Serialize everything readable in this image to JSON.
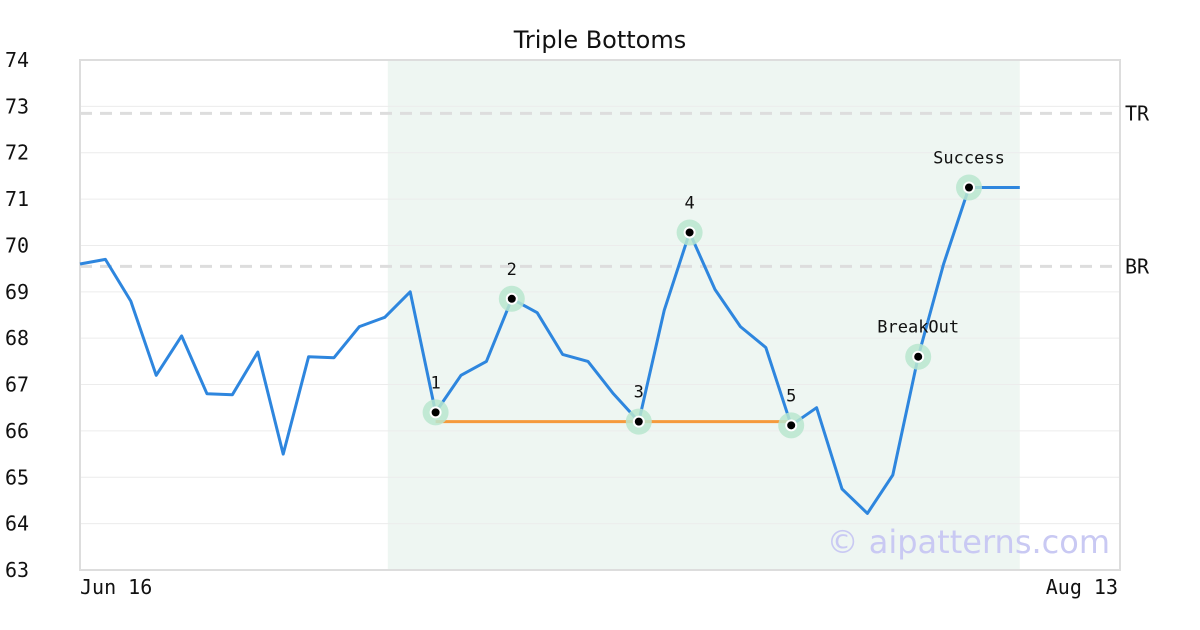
{
  "chart_data": {
    "type": "line",
    "title": "Triple Bottoms",
    "xlabel": "",
    "ylabel": "",
    "x_tick_labels": [
      "Jun 16",
      "Aug 13"
    ],
    "ylim": [
      63,
      74
    ],
    "yticks": [
      63,
      64,
      65,
      66,
      67,
      68,
      69,
      70,
      71,
      72,
      73,
      74
    ],
    "grid": "horizontal",
    "series": [
      {
        "color": "#2e86de",
        "values": [
          69.6,
          69.7,
          68.8,
          67.2,
          68.05,
          66.8,
          66.78,
          67.7,
          65.5,
          67.6,
          67.58,
          68.25,
          68.45,
          69.0,
          66.4,
          67.2,
          67.5,
          68.85,
          68.55,
          67.65,
          67.5,
          66.8,
          66.2,
          68.6,
          70.28,
          69.05,
          68.25,
          67.8,
          66.12,
          66.5,
          64.75,
          64.22,
          65.05,
          67.6,
          69.6,
          71.25,
          71.25,
          71.25
        ]
      }
    ],
    "shaded_region": {
      "from_index": 12,
      "to_index": 37,
      "color": "#eef6f2"
    },
    "levels": [
      {
        "label": "TR",
        "value": 72.85,
        "color": "#dddddd"
      },
      {
        "label": "BR",
        "value": 69.55,
        "color": "#dddddd"
      }
    ],
    "support_line": {
      "value": 66.2,
      "from_index": 14,
      "to_index": 28,
      "color": "#f59a3c"
    },
    "annotations": [
      {
        "label": "1",
        "index": 14,
        "value": 66.4
      },
      {
        "label": "2",
        "index": 17,
        "value": 68.85
      },
      {
        "label": "3",
        "index": 22,
        "value": 66.2
      },
      {
        "label": "4",
        "index": 24,
        "value": 70.28
      },
      {
        "label": "5",
        "index": 28,
        "value": 66.12
      },
      {
        "label": "BreakOut",
        "index": 33,
        "value": 67.6
      },
      {
        "label": "Success",
        "index": 35,
        "value": 71.25
      }
    ],
    "watermark": "© aipatterns.com"
  }
}
